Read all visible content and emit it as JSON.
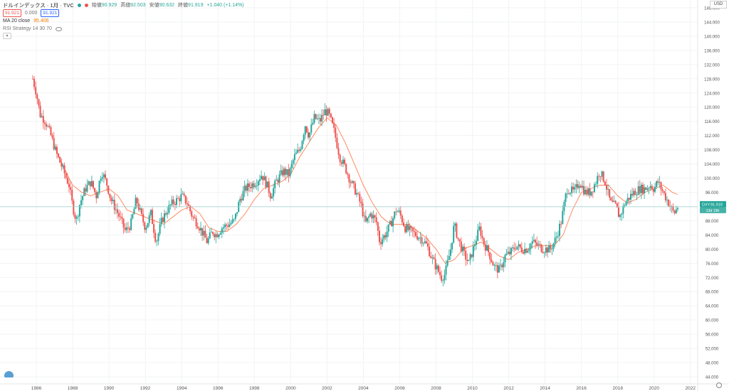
{
  "legend": {
    "symbol": "ドルインデックス · 1月 · TVC",
    "open_label": "始値",
    "open": "90.929",
    "high_label": "高値",
    "high": "92.503",
    "low_label": "安値",
    "low": "90.632",
    "close_label": "終値",
    "close": "91.919",
    "change": "+1.040 (+1.14%)",
    "bid": "91.921",
    "spread": "0.000",
    "ask": "91.921",
    "ma_name": "MA 20 close",
    "ma_value": "95.406",
    "strategy": "RSI Strategy 14 30 70"
  },
  "axis": {
    "currency": "USD"
  },
  "last_price_tags": {
    "symbol": "DXY",
    "price": "91.919",
    "countdown": "13d 19h"
  },
  "colors": {
    "up": "#26a69a",
    "down": "#ef5350",
    "ma": "#ff7f50",
    "last_line": "#9fd6cf"
  },
  "chart_data": {
    "type": "candlestick",
    "interval": "1M",
    "x_range": [
      1984.0,
      2022.4
    ],
    "ylim": [
      42.0,
      150.2
    ],
    "y_ticks": [
      "44.000",
      "48.000",
      "52.000",
      "56.000",
      "60.000",
      "64.000",
      "68.000",
      "72.000",
      "76.000",
      "80.000",
      "84.000",
      "88.000",
      "92.000",
      "96.000",
      "100.000",
      "104.000",
      "108.000",
      "112.000",
      "116.000",
      "120.000",
      "124.000",
      "128.000",
      "132.000",
      "136.000",
      "140.000",
      "144.000",
      "148.000"
    ],
    "x_ticks": [
      "1986",
      "1988",
      "1990",
      "1992",
      "1994",
      "1996",
      "1998",
      "2000",
      "2002",
      "2004",
      "2006",
      "2008",
      "2010",
      "2012",
      "2014",
      "2016",
      "2018",
      "2020",
      "2022"
    ],
    "close_path": [
      [
        1985.8,
        128.0
      ],
      [
        1986.0,
        124.0
      ],
      [
        1986.2,
        118.0
      ],
      [
        1986.5,
        116.0
      ],
      [
        1986.8,
        112.0
      ],
      [
        1987.1,
        107.0
      ],
      [
        1987.5,
        102.0
      ],
      [
        1987.8,
        98.0
      ],
      [
        1988.0,
        92.0
      ],
      [
        1988.2,
        88.0
      ],
      [
        1988.4,
        93.0
      ],
      [
        1988.7,
        97.0
      ],
      [
        1989.0,
        99.0
      ],
      [
        1989.3,
        95.0
      ],
      [
        1989.6,
        102.0
      ],
      [
        1989.9,
        98.0
      ],
      [
        1990.1,
        94.0
      ],
      [
        1990.5,
        90.0
      ],
      [
        1990.9,
        85.0
      ],
      [
        1991.2,
        87.0
      ],
      [
        1991.5,
        94.0
      ],
      [
        1991.8,
        89.0
      ],
      [
        1992.0,
        86.0
      ],
      [
        1992.3,
        90.0
      ],
      [
        1992.6,
        82.0
      ],
      [
        1992.9,
        88.0
      ],
      [
        1993.2,
        91.0
      ],
      [
        1993.5,
        93.0
      ],
      [
        1993.8,
        94.0
      ],
      [
        1994.0,
        95.0
      ],
      [
        1994.3,
        93.0
      ],
      [
        1994.6,
        89.0
      ],
      [
        1994.9,
        87.0
      ],
      [
        1995.2,
        84.0
      ],
      [
        1995.4,
        82.0
      ],
      [
        1995.7,
        85.0
      ],
      [
        1995.9,
        84.0
      ],
      [
        1996.2,
        86.0
      ],
      [
        1996.6,
        87.0
      ],
      [
        1996.9,
        88.0
      ],
      [
        1997.2,
        94.0
      ],
      [
        1997.5,
        97.0
      ],
      [
        1997.8,
        98.0
      ],
      [
        1998.1,
        99.0
      ],
      [
        1998.4,
        101.0
      ],
      [
        1998.7,
        98.0
      ],
      [
        1998.9,
        95.0
      ],
      [
        1999.2,
        99.0
      ],
      [
        1999.6,
        102.0
      ],
      [
        1999.9,
        101.0
      ],
      [
        2000.2,
        106.0
      ],
      [
        2000.5,
        108.0
      ],
      [
        2000.8,
        115.0
      ],
      [
        2001.0,
        112.0
      ],
      [
        2001.3,
        117.0
      ],
      [
        2001.6,
        116.0
      ],
      [
        2001.9,
        119.0
      ],
      [
        2002.1,
        118.0
      ],
      [
        2002.4,
        113.0
      ],
      [
        2002.7,
        106.0
      ],
      [
        2003.0,
        103.0
      ],
      [
        2003.3,
        99.0
      ],
      [
        2003.6,
        96.0
      ],
      [
        2003.9,
        92.0
      ],
      [
        2004.1,
        87.0
      ],
      [
        2004.4,
        90.0
      ],
      [
        2004.7,
        88.0
      ],
      [
        2004.9,
        82.0
      ],
      [
        2005.2,
        84.0
      ],
      [
        2005.5,
        87.0
      ],
      [
        2005.8,
        91.0
      ],
      [
        2006.0,
        90.0
      ],
      [
        2006.3,
        86.0
      ],
      [
        2006.6,
        85.0
      ],
      [
        2006.9,
        84.0
      ],
      [
        2007.2,
        83.0
      ],
      [
        2007.5,
        81.0
      ],
      [
        2007.8,
        77.0
      ],
      [
        2008.0,
        75.0
      ],
      [
        2008.3,
        72.0
      ],
      [
        2008.5,
        73.0
      ],
      [
        2008.8,
        80.0
      ],
      [
        2009.0,
        87.0
      ],
      [
        2009.2,
        83.0
      ],
      [
        2009.5,
        79.0
      ],
      [
        2009.8,
        76.0
      ],
      [
        2010.1,
        81.0
      ],
      [
        2010.4,
        86.0
      ],
      [
        2010.6,
        82.0
      ],
      [
        2010.9,
        79.0
      ],
      [
        2011.2,
        75.0
      ],
      [
        2011.5,
        74.0
      ],
      [
        2011.8,
        78.0
      ],
      [
        2012.1,
        79.0
      ],
      [
        2012.4,
        81.0
      ],
      [
        2012.7,
        80.0
      ],
      [
        2013.0,
        80.0
      ],
      [
        2013.3,
        82.0
      ],
      [
        2013.6,
        81.0
      ],
      [
        2013.9,
        80.0
      ],
      [
        2014.3,
        80.0
      ],
      [
        2014.6,
        83.0
      ],
      [
        2014.9,
        88.0
      ],
      [
        2015.2,
        97.0
      ],
      [
        2015.6,
        96.0
      ],
      [
        2015.9,
        99.0
      ],
      [
        2016.2,
        96.0
      ],
      [
        2016.5,
        96.0
      ],
      [
        2016.8,
        99.0
      ],
      [
        2017.0,
        102.0
      ],
      [
        2017.3,
        99.0
      ],
      [
        2017.6,
        93.0
      ],
      [
        2017.9,
        92.0
      ],
      [
        2018.1,
        89.0
      ],
      [
        2018.4,
        93.0
      ],
      [
        2018.7,
        95.0
      ],
      [
        2018.9,
        96.0
      ],
      [
        2019.2,
        97.0
      ],
      [
        2019.5,
        97.0
      ],
      [
        2019.8,
        98.0
      ],
      [
        2020.0,
        97.0
      ],
      [
        2020.2,
        99.0
      ],
      [
        2020.5,
        96.0
      ],
      [
        2020.8,
        93.0
      ],
      [
        2020.9,
        92.0
      ],
      [
        2021.1,
        90.0
      ],
      [
        2021.3,
        91.9
      ]
    ],
    "ma_path": [
      [
        1987.0,
        109.0
      ],
      [
        1987.5,
        103.0
      ],
      [
        1988.0,
        98.0
      ],
      [
        1988.5,
        96.0
      ],
      [
        1989.0,
        95.0
      ],
      [
        1989.5,
        96.0
      ],
      [
        1990.0,
        97.0
      ],
      [
        1990.5,
        95.0
      ],
      [
        1991.0,
        91.0
      ],
      [
        1991.5,
        90.0
      ],
      [
        1992.0,
        89.0
      ],
      [
        1992.5,
        88.0
      ],
      [
        1993.0,
        87.0
      ],
      [
        1993.5,
        89.0
      ],
      [
        1994.0,
        91.0
      ],
      [
        1994.5,
        92.0
      ],
      [
        1995.0,
        90.0
      ],
      [
        1995.5,
        86.0
      ],
      [
        1996.0,
        85.0
      ],
      [
        1996.5,
        85.0
      ],
      [
        1997.0,
        87.0
      ],
      [
        1997.5,
        90.0
      ],
      [
        1998.0,
        94.0
      ],
      [
        1998.5,
        97.0
      ],
      [
        1999.0,
        98.0
      ],
      [
        1999.5,
        99.0
      ],
      [
        2000.0,
        101.0
      ],
      [
        2000.5,
        106.0
      ],
      [
        2001.0,
        110.0
      ],
      [
        2001.5,
        114.0
      ],
      [
        2002.0,
        117.0
      ],
      [
        2002.5,
        115.0
      ],
      [
        2003.0,
        110.0
      ],
      [
        2003.5,
        104.0
      ],
      [
        2004.0,
        98.0
      ],
      [
        2004.5,
        93.0
      ],
      [
        2005.0,
        89.0
      ],
      [
        2005.5,
        87.0
      ],
      [
        2006.0,
        87.0
      ],
      [
        2006.5,
        87.0
      ],
      [
        2007.0,
        85.0
      ],
      [
        2007.5,
        83.0
      ],
      [
        2008.0,
        80.0
      ],
      [
        2008.5,
        76.0
      ],
      [
        2009.0,
        77.0
      ],
      [
        2009.5,
        80.0
      ],
      [
        2010.0,
        81.0
      ],
      [
        2010.5,
        82.0
      ],
      [
        2011.0,
        80.0
      ],
      [
        2011.5,
        78.0
      ],
      [
        2012.0,
        77.0
      ],
      [
        2012.5,
        79.0
      ],
      [
        2013.0,
        80.0
      ],
      [
        2013.5,
        81.0
      ],
      [
        2014.0,
        81.0
      ],
      [
        2014.5,
        81.0
      ],
      [
        2015.0,
        84.0
      ],
      [
        2015.5,
        91.0
      ],
      [
        2016.0,
        96.0
      ],
      [
        2016.5,
        97.0
      ],
      [
        2017.0,
        98.0
      ],
      [
        2017.5,
        98.0
      ],
      [
        2018.0,
        95.0
      ],
      [
        2018.5,
        93.0
      ],
      [
        2019.0,
        94.0
      ],
      [
        2019.5,
        96.0
      ],
      [
        2020.0,
        97.0
      ],
      [
        2020.5,
        98.0
      ],
      [
        2021.0,
        96.0
      ],
      [
        2021.3,
        95.4
      ]
    ]
  }
}
